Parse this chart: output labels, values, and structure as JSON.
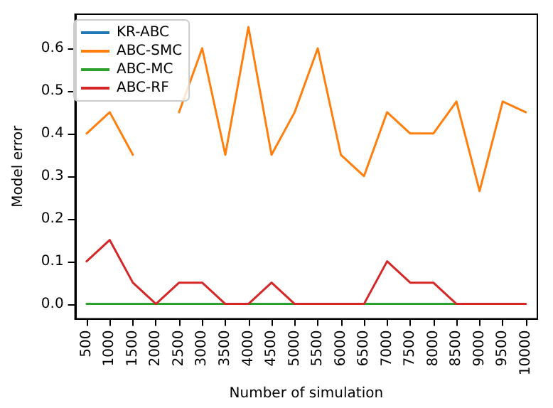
{
  "chart_data": {
    "type": "line",
    "xlabel": "Number of simulation",
    "ylabel": "Model error",
    "categories": [
      "500",
      "1000",
      "1500",
      "2000",
      "2500",
      "3000",
      "3500",
      "4000",
      "4500",
      "5000",
      "5500",
      "6000",
      "6500",
      "7000",
      "7500",
      "8000",
      "8500",
      "9000",
      "9500",
      "10000"
    ],
    "series": [
      {
        "name": "KR-ABC",
        "color": "#1f77b4",
        "values": [
          null,
          null,
          null,
          null,
          null,
          null,
          null,
          null,
          null,
          null,
          null,
          null,
          null,
          null,
          null,
          null,
          null,
          null,
          null,
          null
        ]
      },
      {
        "name": "ABC-SMC",
        "color": "#ff7f0e",
        "values": [
          0.4,
          0.45,
          0.35,
          null,
          0.45,
          0.6,
          0.35,
          0.65,
          0.35,
          0.45,
          0.6,
          0.35,
          0.3,
          0.45,
          0.4,
          0.4,
          0.475,
          0.265,
          0.475,
          0.45
        ]
      },
      {
        "name": "ABC-MC",
        "color": "#2ca02c",
        "values": [
          0,
          0,
          0,
          0,
          0,
          0,
          0,
          0,
          0,
          0,
          0,
          0,
          0,
          0,
          0,
          0,
          0,
          0,
          null,
          null
        ]
      },
      {
        "name": "ABC-RF",
        "color": "#d62728",
        "values": [
          0.1,
          0.15,
          0.05,
          0,
          0.05,
          0.05,
          0,
          0,
          0.05,
          0,
          0,
          0,
          0,
          0.1,
          0.05,
          0.05,
          0,
          0,
          0,
          0
        ]
      }
    ],
    "ylim": [
      -0.035,
      0.68
    ],
    "yticks": [
      {
        "value": 0,
        "label": "0.0"
      },
      0.1,
      0.2,
      0.3,
      0.4,
      0.5,
      0.6
    ],
    "grid": false,
    "legend": "top left",
    "marker": "none",
    "line_style": "solid"
  }
}
